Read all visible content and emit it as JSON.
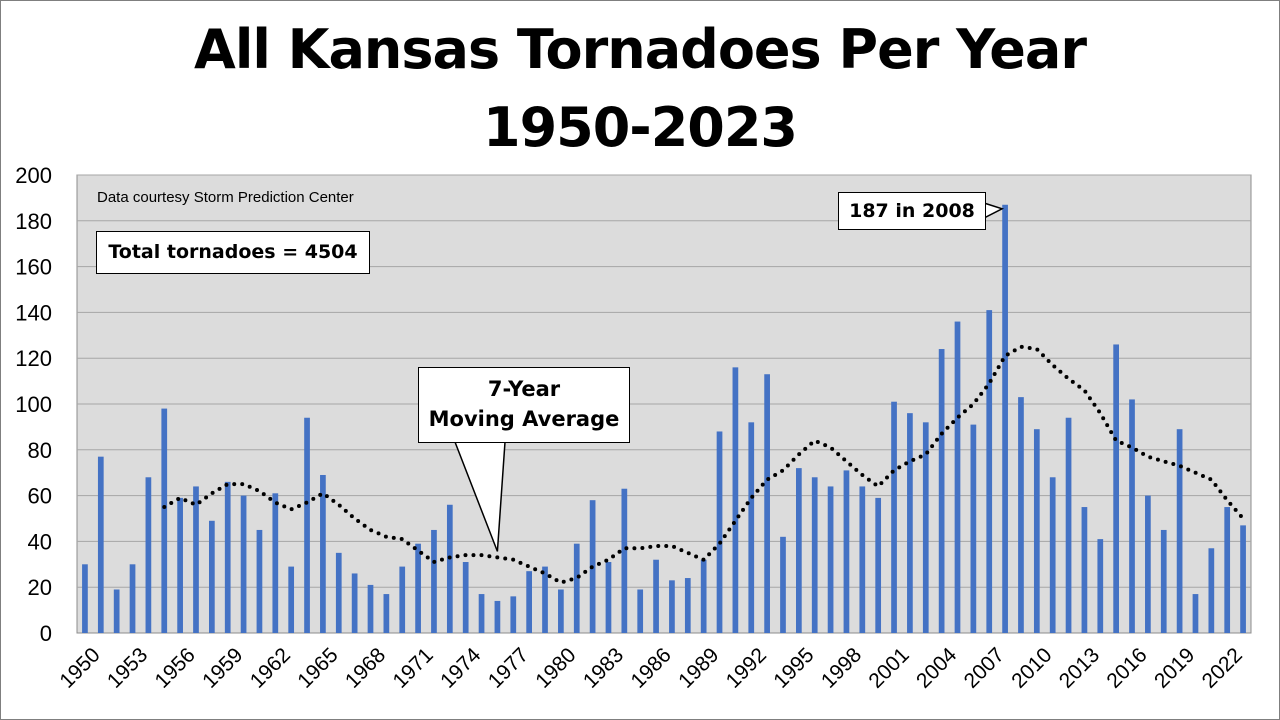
{
  "title_line1": "All Kansas Tornadoes Per Year",
  "title_line2": "1950-2023",
  "source_note": "Data courtesy Storm Prediction Center",
  "total_note": "Total tornadoes = 4504",
  "max_callout": "187 in 2008",
  "ma_callout_line1": "7-Year",
  "ma_callout_line2": "Moving Average",
  "colors": {
    "bar": "#4472c4",
    "plot_bg": "#dcdcdc",
    "grid": "#a6a6a6",
    "moving_average": "#000000"
  },
  "chart_data": {
    "type": "bar",
    "title": "All Kansas Tornadoes Per Year 1950-2023",
    "xlabel": "",
    "ylabel": "",
    "ylim": [
      0,
      200
    ],
    "y_ticks": [
      0,
      20,
      40,
      60,
      80,
      100,
      120,
      140,
      160,
      180,
      200
    ],
    "grid": true,
    "x_tick_labels": [
      "1950",
      "1953",
      "1956",
      "1959",
      "1962",
      "1965",
      "1968",
      "1971",
      "1974",
      "1977",
      "1980",
      "1983",
      "1986",
      "1989",
      "1992",
      "1995",
      "1998",
      "2001",
      "2004",
      "2007",
      "2010",
      "2013",
      "2016",
      "2019",
      "2022"
    ],
    "categories": [
      1950,
      1951,
      1952,
      1953,
      1954,
      1955,
      1956,
      1957,
      1958,
      1959,
      1960,
      1961,
      1962,
      1963,
      1964,
      1965,
      1966,
      1967,
      1968,
      1969,
      1970,
      1971,
      1972,
      1973,
      1974,
      1975,
      1976,
      1977,
      1978,
      1979,
      1980,
      1981,
      1982,
      1983,
      1984,
      1985,
      1986,
      1987,
      1988,
      1989,
      1990,
      1991,
      1992,
      1993,
      1994,
      1995,
      1996,
      1997,
      1998,
      1999,
      2000,
      2001,
      2002,
      2003,
      2004,
      2005,
      2006,
      2007,
      2008,
      2009,
      2010,
      2011,
      2012,
      2013,
      2014,
      2015,
      2016,
      2017,
      2018,
      2019,
      2020,
      2021,
      2022,
      2023
    ],
    "series": [
      {
        "type": "bar",
        "values": [
          30,
          77,
          19,
          30,
          68,
          98,
          59,
          64,
          49,
          66,
          60,
          45,
          61,
          29,
          94,
          69,
          35,
          26,
          21,
          17,
          29,
          39,
          45,
          56,
          31,
          17,
          14,
          16,
          27,
          29,
          19,
          39,
          58,
          31,
          63,
          19,
          32,
          23,
          24,
          32,
          88,
          116,
          92,
          113,
          42,
          72,
          68,
          64,
          71,
          64,
          59,
          101,
          96,
          92,
          124,
          136,
          91,
          141,
          187,
          103,
          89,
          68,
          94,
          55,
          41,
          126,
          102,
          60,
          45,
          89,
          17,
          37,
          55,
          47
        ]
      },
      {
        "type": "line",
        "style": "dotted",
        "values": [
          null,
          null,
          null,
          null,
          null,
          55,
          59,
          56,
          61,
          65,
          65,
          62,
          57,
          54,
          57,
          61,
          56,
          50,
          45,
          42,
          41,
          36,
          31,
          33,
          34,
          34,
          33,
          32,
          29,
          26,
          22,
          24,
          29,
          32,
          37,
          37,
          38,
          38,
          35,
          32,
          39,
          49,
          59,
          67,
          71,
          78,
          84,
          81,
          75,
          69,
          64,
          71,
          75,
          78,
          87,
          94,
          100,
          109,
          121,
          125,
          124,
          117,
          111,
          106,
          96,
          84,
          81,
          77,
          75,
          73,
          70,
          67,
          58,
          50
        ]
      }
    ]
  }
}
